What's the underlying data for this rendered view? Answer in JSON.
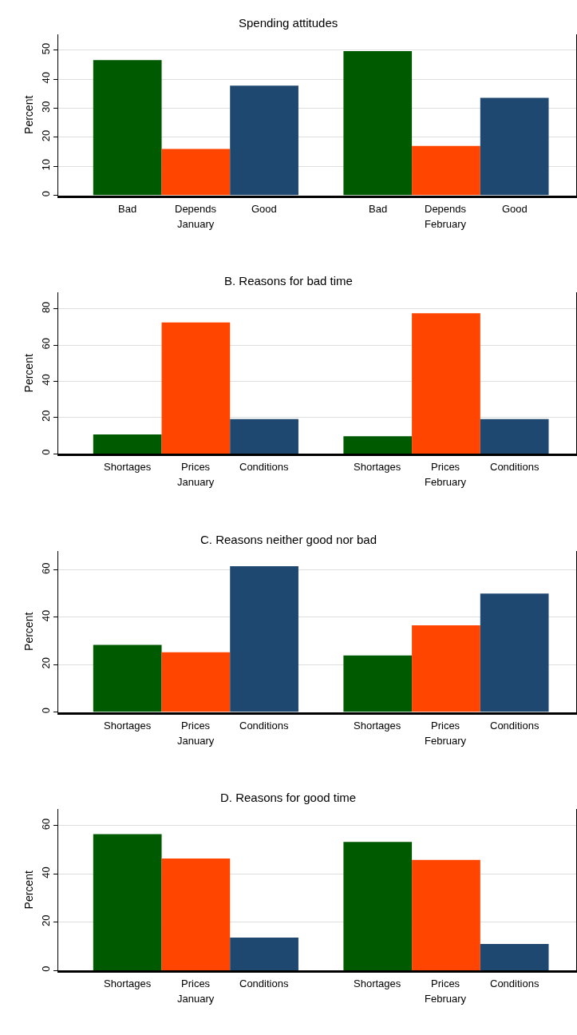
{
  "chart_data": [
    {
      "type": "bar",
      "title": "Spending attitudes",
      "ylabel": "Percent",
      "categories": [
        "January",
        "February"
      ],
      "ylim": [
        0,
        55.5
      ],
      "yticks": [
        0,
        10,
        20,
        30,
        40,
        50
      ],
      "grid": "y",
      "series": [
        {
          "name": "Bad",
          "color": "#005a00",
          "values": [
            46.6,
            49.7
          ]
        },
        {
          "name": "Depends",
          "color": "#ff4500",
          "values": [
            16.0,
            17.0
          ]
        },
        {
          "name": "Good",
          "color": "#1f4870",
          "values": [
            37.8,
            33.6
          ]
        }
      ]
    },
    {
      "type": "bar",
      "title": "B. Reasons for bad time",
      "ylabel": "Percent",
      "categories": [
        "January",
        "February"
      ],
      "ylim": [
        0,
        89
      ],
      "yticks": [
        0,
        20,
        40,
        60,
        80
      ],
      "grid": "y",
      "series": [
        {
          "name": "Shortages",
          "color": "#005a00",
          "values": [
            10.6,
            9.7
          ]
        },
        {
          "name": "Prices",
          "color": "#ff4500",
          "values": [
            72.5,
            77.6
          ]
        },
        {
          "name": "Conditions",
          "color": "#1f4870",
          "values": [
            19.1,
            19.1
          ]
        }
      ]
    },
    {
      "type": "bar",
      "title": "C. Reasons neither good nor bad",
      "ylabel": "Percent",
      "categories": [
        "January",
        "February"
      ],
      "ylim": [
        0,
        68
      ],
      "yticks": [
        0,
        20,
        40,
        60
      ],
      "grid": "y",
      "series": [
        {
          "name": "Shortages",
          "color": "#005a00",
          "values": [
            28.4,
            23.9
          ]
        },
        {
          "name": "Prices",
          "color": "#ff4500",
          "values": [
            25.2,
            36.6
          ]
        },
        {
          "name": "Conditions",
          "color": "#1f4870",
          "values": [
            61.6,
            50.0
          ]
        }
      ]
    },
    {
      "type": "bar",
      "title": "D. Reasons for good time",
      "ylabel": "Percent",
      "categories": [
        "January",
        "February"
      ],
      "ylim": [
        0,
        66.8
      ],
      "yticks": [
        0,
        20,
        40,
        60
      ],
      "grid": "y",
      "series": [
        {
          "name": "Shortages",
          "color": "#005a00",
          "values": [
            56.5,
            53.3
          ]
        },
        {
          "name": "Prices",
          "color": "#ff4500",
          "values": [
            46.4,
            45.8
          ]
        },
        {
          "name": "Conditions",
          "color": "#1f4870",
          "values": [
            13.6,
            11.0
          ]
        }
      ]
    }
  ]
}
